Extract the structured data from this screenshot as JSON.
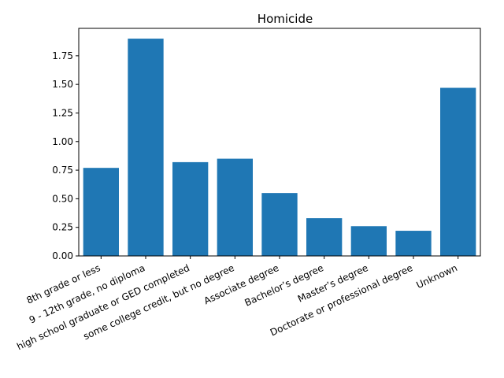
{
  "chart_data": {
    "type": "bar",
    "title": "Homicide",
    "xlabel": "",
    "ylabel": "",
    "categories": [
      "8th grade or less",
      "9 - 12th grade, no diploma",
      "high school graduate or GED completed",
      "some college credit, but no degree",
      "Associate degree",
      "Bachelor’s degree",
      "Master’s degree",
      "Doctorate or professional degree",
      "Unknown"
    ],
    "values": [
      0.77,
      1.9,
      0.82,
      0.85,
      0.55,
      0.33,
      0.26,
      0.22,
      1.47
    ],
    "ylim": [
      0,
      1.99
    ],
    "yticks": [
      0.0,
      0.25,
      0.5,
      0.75,
      1.0,
      1.25,
      1.5,
      1.75
    ],
    "ytick_labels": [
      "0.00",
      "0.25",
      "0.50",
      "0.75",
      "1.00",
      "1.25",
      "1.50",
      "1.75"
    ],
    "bar_color": "#1f77b4",
    "grid": false,
    "legend": "none"
  }
}
